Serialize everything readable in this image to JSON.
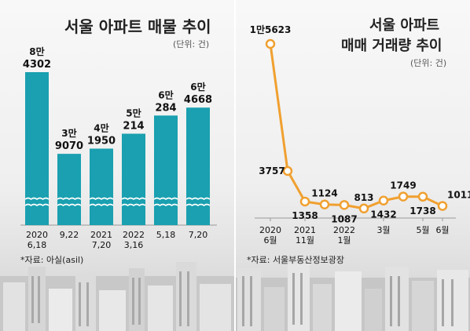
{
  "chart_data": [
    {
      "type": "bar",
      "title": "서울 아파트 매물 추이",
      "unit": "(단위: 건)",
      "source": "*자료: 아실(asil)",
      "categories": [
        [
          "2020",
          "6,18"
        ],
        [
          "9,22"
        ],
        [
          "2021",
          "7,20"
        ],
        [
          "2022",
          "3,16"
        ],
        [
          "5,18"
        ],
        [
          "7,20"
        ]
      ],
      "values": [
        84302,
        39070,
        41950,
        50214,
        60284,
        64668
      ],
      "labels": [
        [
          "8만",
          "4302"
        ],
        [
          "3만",
          "9070"
        ],
        [
          "4만",
          "1950"
        ],
        [
          "5만",
          "214"
        ],
        [
          "6만",
          "284"
        ],
        [
          "6만",
          "4668"
        ]
      ],
      "axis_break": true,
      "bar_color": "#1aa0b0"
    },
    {
      "type": "line",
      "title": [
        "서울 아파트",
        "매매 거래량 추이"
      ],
      "unit": "(단위: 건)",
      "source": "*자료: 서울부동산정보광장",
      "x_ticks": [
        [
          "2020",
          "6월"
        ],
        [
          "2021",
          "11월"
        ],
        [
          "2022",
          "1월"
        ],
        [
          "3월"
        ],
        [
          "5월"
        ],
        [
          "6월"
        ]
      ],
      "values": [
        15623,
        3757,
        1358,
        1124,
        1087,
        813,
        1432,
        1749,
        1738,
        1011
      ],
      "labels": [
        "1만5623",
        "3757",
        "1358",
        "1124",
        "1087",
        "813",
        "1432",
        "1749",
        "1738",
        "1011"
      ],
      "line_color": "#f0a030"
    }
  ]
}
